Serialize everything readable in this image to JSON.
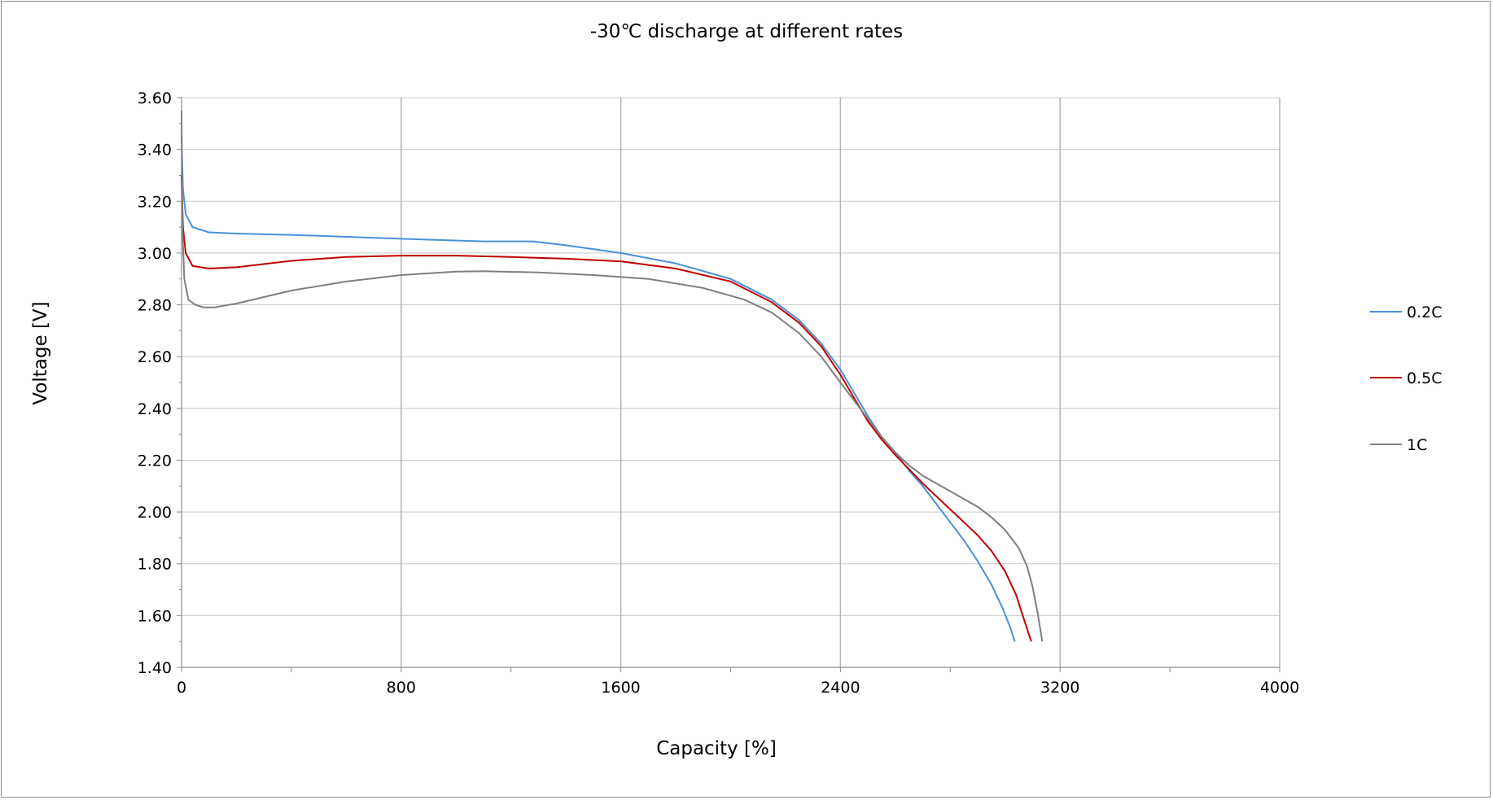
{
  "chart_data": {
    "type": "line",
    "title": "-30℃ discharge at different rates",
    "xlabel": "Capacity [%]",
    "ylabel": "Voltage [V]",
    "xlim": [
      0,
      4000
    ],
    "ylim": [
      1.4,
      3.6
    ],
    "x_ticks": [
      "0",
      "800",
      "1600",
      "2400",
      "3200",
      "4000"
    ],
    "y_ticks": [
      "1.40",
      "1.60",
      "1.80",
      "2.00",
      "2.20",
      "2.40",
      "2.60",
      "2.80",
      "3.00",
      "3.20",
      "3.40",
      "3.60"
    ],
    "grid": true,
    "legend_position": "right",
    "series": [
      {
        "name": "0.2C",
        "color": "#4a90d9",
        "points": [
          [
            0,
            3.45
          ],
          [
            5,
            3.25
          ],
          [
            15,
            3.15
          ],
          [
            40,
            3.1
          ],
          [
            100,
            3.08
          ],
          [
            200,
            3.075
          ],
          [
            400,
            3.07
          ],
          [
            800,
            3.055
          ],
          [
            1100,
            3.045
          ],
          [
            1280,
            3.045
          ],
          [
            1400,
            3.03
          ],
          [
            1600,
            3.0
          ],
          [
            1800,
            2.96
          ],
          [
            2000,
            2.9
          ],
          [
            2150,
            2.82
          ],
          [
            2250,
            2.74
          ],
          [
            2330,
            2.65
          ],
          [
            2400,
            2.55
          ],
          [
            2450,
            2.46
          ],
          [
            2500,
            2.37
          ],
          [
            2550,
            2.29
          ],
          [
            2600,
            2.23
          ],
          [
            2650,
            2.16
          ],
          [
            2700,
            2.1
          ],
          [
            2750,
            2.03
          ],
          [
            2800,
            1.96
          ],
          [
            2850,
            1.89
          ],
          [
            2900,
            1.81
          ],
          [
            2950,
            1.72
          ],
          [
            2990,
            1.63
          ],
          [
            3020,
            1.55
          ],
          [
            3035,
            1.5
          ]
        ]
      },
      {
        "name": "0.5C",
        "color": "#c00000",
        "points": [
          [
            0,
            3.3
          ],
          [
            5,
            3.1
          ],
          [
            15,
            3.0
          ],
          [
            40,
            2.95
          ],
          [
            100,
            2.94
          ],
          [
            200,
            2.945
          ],
          [
            400,
            2.97
          ],
          [
            600,
            2.985
          ],
          [
            800,
            2.99
          ],
          [
            1000,
            2.99
          ],
          [
            1200,
            2.985
          ],
          [
            1400,
            2.978
          ],
          [
            1600,
            2.968
          ],
          [
            1800,
            2.94
          ],
          [
            2000,
            2.89
          ],
          [
            2150,
            2.81
          ],
          [
            2250,
            2.73
          ],
          [
            2330,
            2.64
          ],
          [
            2400,
            2.53
          ],
          [
            2450,
            2.44
          ],
          [
            2500,
            2.35
          ],
          [
            2550,
            2.28
          ],
          [
            2600,
            2.22
          ],
          [
            2650,
            2.165
          ],
          [
            2700,
            2.11
          ],
          [
            2750,
            2.06
          ],
          [
            2800,
            2.01
          ],
          [
            2850,
            1.96
          ],
          [
            2900,
            1.91
          ],
          [
            2950,
            1.85
          ],
          [
            3000,
            1.77
          ],
          [
            3040,
            1.68
          ],
          [
            3070,
            1.58
          ],
          [
            3095,
            1.5
          ]
        ]
      },
      {
        "name": "1C",
        "color": "#7f7f7f",
        "points": [
          [
            0,
            3.55
          ],
          [
            3,
            3.1
          ],
          [
            10,
            2.9
          ],
          [
            25,
            2.82
          ],
          [
            50,
            2.8
          ],
          [
            80,
            2.79
          ],
          [
            120,
            2.79
          ],
          [
            200,
            2.805
          ],
          [
            400,
            2.855
          ],
          [
            600,
            2.89
          ],
          [
            800,
            2.915
          ],
          [
            1000,
            2.928
          ],
          [
            1100,
            2.93
          ],
          [
            1300,
            2.925
          ],
          [
            1500,
            2.915
          ],
          [
            1700,
            2.9
          ],
          [
            1900,
            2.865
          ],
          [
            2050,
            2.82
          ],
          [
            2150,
            2.77
          ],
          [
            2250,
            2.69
          ],
          [
            2330,
            2.6
          ],
          [
            2400,
            2.5
          ],
          [
            2450,
            2.43
          ],
          [
            2500,
            2.36
          ],
          [
            2550,
            2.29
          ],
          [
            2600,
            2.23
          ],
          [
            2650,
            2.18
          ],
          [
            2700,
            2.14
          ],
          [
            2750,
            2.11
          ],
          [
            2800,
            2.08
          ],
          [
            2850,
            2.05
          ],
          [
            2900,
            2.02
          ],
          [
            2950,
            1.98
          ],
          [
            3000,
            1.93
          ],
          [
            3050,
            1.86
          ],
          [
            3080,
            1.79
          ],
          [
            3100,
            1.71
          ],
          [
            3120,
            1.6
          ],
          [
            3135,
            1.5
          ]
        ]
      }
    ]
  }
}
